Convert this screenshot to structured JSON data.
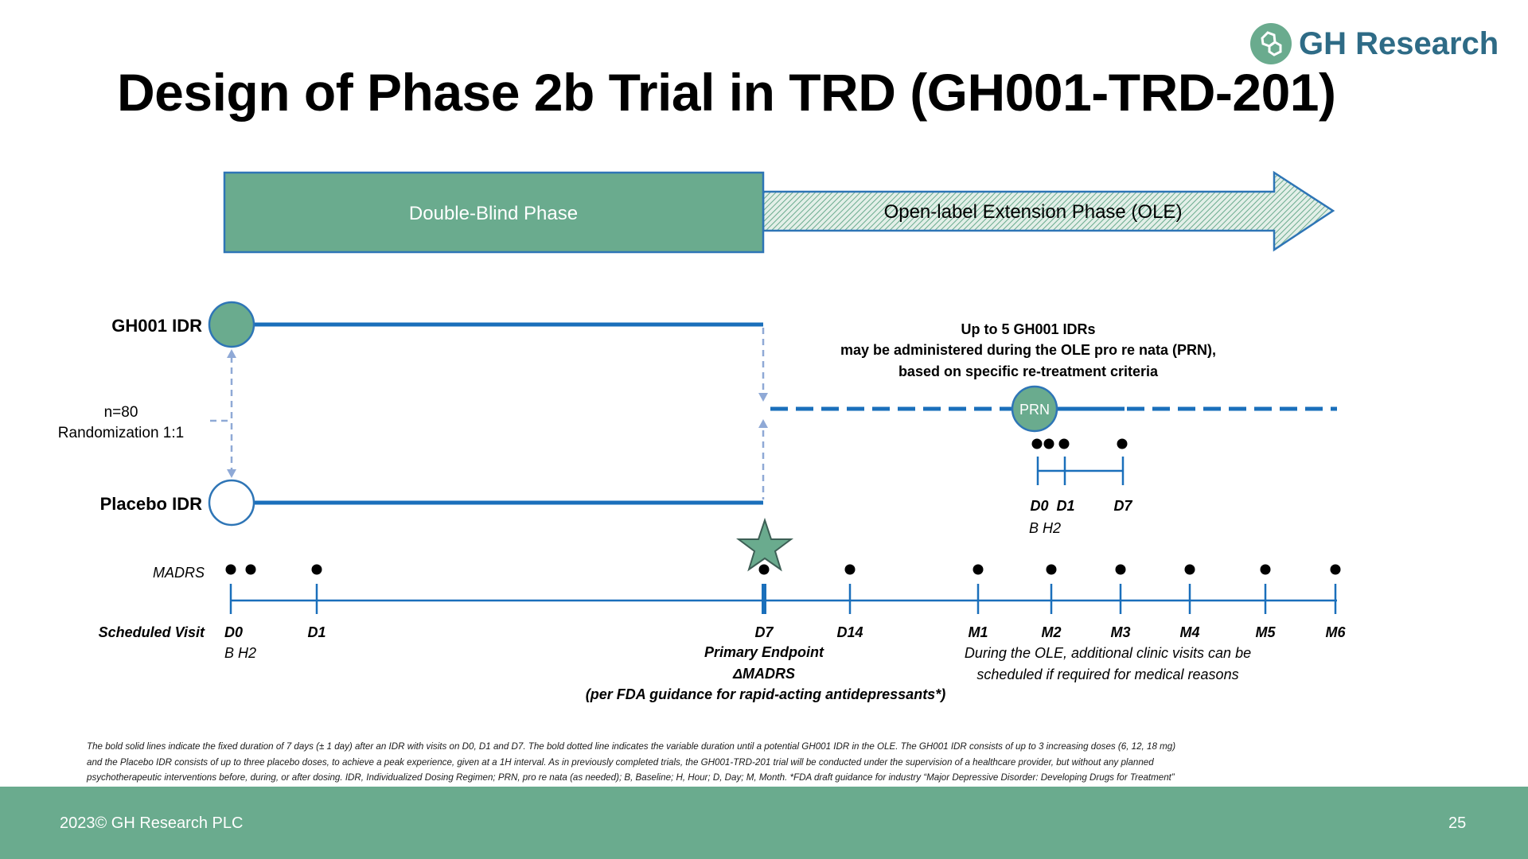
{
  "title": "Design of Phase 2b Trial in TRD (GH001-TRD-201)",
  "logo": {
    "text": "GH Research",
    "icon": "gh-research-logo"
  },
  "phases": {
    "double_blind": "Double-Blind Phase",
    "ole": "Open-label Extension Phase (OLE)"
  },
  "arms": {
    "active": "GH001 IDR",
    "placebo": "Placebo IDR"
  },
  "randomization": {
    "n": "n=80",
    "ratio": "Randomization 1:1"
  },
  "ole_note": {
    "line1": "Up to 5 GH001 IDRs",
    "line2": "may be administered during the OLE pro re nata (PRN),",
    "line3": "based on specific re-treatment criteria"
  },
  "prn": {
    "badge": "PRN",
    "visits": [
      "D0",
      "D1",
      "D7"
    ],
    "sub": "B H2"
  },
  "row_labels": {
    "madrs": "MADRS",
    "scheduled_visit": "Scheduled Visit"
  },
  "visits": [
    "D0",
    "D1",
    "D7",
    "D14",
    "M1",
    "M2",
    "M3",
    "M4",
    "M5",
    "M6"
  ],
  "d0_sub": "B H2",
  "primary_endpoint": {
    "line1": "Primary Endpoint",
    "line2": "ΔMADRS",
    "line3": "(per FDA guidance for rapid-acting antidepressants*)"
  },
  "ole_visits_note": {
    "line1": "During the OLE, additional clinic visits can be",
    "line2": "scheduled if required for medical reasons"
  },
  "footnote": {
    "line1": "The bold solid lines indicate the fixed duration of 7 days (± 1 day) after an IDR with visits on D0, D1 and D7. The bold dotted line indicates the variable duration until a potential GH001 IDR in the OLE. The GH001 IDR consists of up to 3 increasing doses (6, 12, 18 mg)",
    "line2": "and the Placebo IDR consists of up to three placebo doses, to achieve a peak experience, given at a 1H interval. As in previously completed trials, the GH001-TRD-201 trial will be conducted under the supervision of a healthcare provider, but without any planned",
    "line3": "psychotherapeutic interventions before, during, or after dosing. IDR, Individualized Dosing Regimen; PRN, pro re nata (as needed); B, Baseline; H, Hour; D, Day; M, Month. *FDA draft guidance for industry “Major Depressive Disorder: Developing Drugs for Treatment”"
  },
  "footer": {
    "copyright": "2023© GH Research PLC",
    "page": "25"
  },
  "colors": {
    "green": "#6aab8e",
    "green_dark": "#4d8a72",
    "blue": "#1a6fbb",
    "blue_light": "#8fa9d6",
    "blue_border": "#2e75b6",
    "logo_text": "#2e6b86"
  }
}
